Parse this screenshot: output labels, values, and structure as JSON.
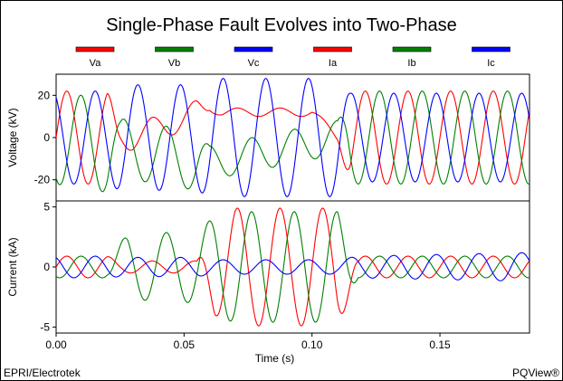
{
  "chart_data": {
    "type": "line",
    "title": "Single-Phase Fault Evolves into Two-Phase",
    "xlabel": "Time (s)",
    "x_ticks": [
      "0.00",
      "0.05",
      "0.10",
      "0.15"
    ],
    "x_tick_values": [
      0,
      0.05,
      0.1,
      0.15
    ],
    "xlim": [
      0,
      0.185
    ],
    "legend_position": "top",
    "legend": [
      {
        "name": "Va",
        "color": "#ff0000"
      },
      {
        "name": "Vb",
        "color": "#008000"
      },
      {
        "name": "Vc",
        "color": "#0000ff"
      },
      {
        "name": "Ia",
        "color": "#ff0000"
      },
      {
        "name": "Ib",
        "color": "#008000"
      },
      {
        "name": "Ic",
        "color": "#0000ff"
      }
    ],
    "panels": [
      {
        "ylabel": "Voltage (kV)",
        "ylim": [
          -30,
          30
        ],
        "y_ticks": [
          "20",
          "0",
          "-20"
        ],
        "y_tick_values": [
          20,
          0,
          -20
        ],
        "frequency_hz": 60,
        "series": [
          {
            "name": "Va",
            "color": "#ff0000",
            "phase_deg": 0,
            "amp_t": [
              0,
              0.02,
              0.025,
              0.055,
              0.06,
              0.062,
              0.07,
              0.11,
              0.115,
              0.185
            ],
            "amp": [
              22,
              22,
              6,
              6,
              2,
              2,
              2,
              2,
              22,
              22
            ],
            "offset_t": [
              0,
              0.03,
              0.06,
              0.065,
              0.1,
              0.11,
              0.185
            ],
            "offset": [
              0,
              0,
              14,
              12,
              12,
              0,
              0
            ]
          },
          {
            "name": "Vb",
            "color": "#008000",
            "phase_deg": -120,
            "amp_t": [
              0,
              0.02,
              0.025,
              0.055,
              0.06,
              0.11,
              0.115,
              0.185
            ],
            "amp": [
              22,
              22,
              14,
              14,
              8,
              8,
              22,
              22
            ],
            "offset_t": [
              0,
              0.03,
              0.06,
              0.11,
              0.185
            ],
            "offset": [
              0,
              -6,
              -12,
              0,
              0
            ]
          },
          {
            "name": "Vc",
            "color": "#0000ff",
            "phase_deg": 120,
            "amp_t": [
              0,
              0.02,
              0.025,
              0.055,
              0.06,
              0.11,
              0.115,
              0.185
            ],
            "amp": [
              22,
              22,
              25,
              25,
              28,
              28,
              21,
              21
            ],
            "offset_t": [
              0,
              0.185
            ],
            "offset": [
              0,
              0
            ]
          }
        ]
      },
      {
        "ylabel": "Current (kA)",
        "ylim": [
          -5.5,
          5.5
        ],
        "y_ticks": [
          "5",
          "0",
          "-5"
        ],
        "y_tick_values": [
          5,
          0,
          -5
        ],
        "frequency_hz": 60,
        "series": [
          {
            "name": "Ia",
            "color": "#ff0000",
            "phase_deg": 0,
            "amp_t": [
              0,
              0.02,
              0.025,
              0.055,
              0.062,
              0.07,
              0.11,
              0.118,
              0.185
            ],
            "amp": [
              0.9,
              0.9,
              0.5,
              0.5,
              4.0,
              4.9,
              4.9,
              0.9,
              0.9
            ],
            "offset_t": [
              0,
              0.185
            ],
            "offset": [
              0,
              0
            ]
          },
          {
            "name": "Ib",
            "color": "#008000",
            "phase_deg": -120,
            "amp_t": [
              0,
              0.02,
              0.028,
              0.055,
              0.062,
              0.07,
              0.11,
              0.118,
              0.185
            ],
            "amp": [
              0.9,
              0.9,
              2.7,
              3.0,
              4.2,
              4.6,
              4.6,
              0.9,
              0.9
            ],
            "offset_t": [
              0,
              0.185
            ],
            "offset": [
              0,
              0
            ]
          },
          {
            "name": "Ic",
            "color": "#0000ff",
            "phase_deg": 120,
            "amp_t": [
              0,
              0.02,
              0.025,
              0.055,
              0.062,
              0.11,
              0.118,
              0.185
            ],
            "amp": [
              0.9,
              0.9,
              0.8,
              0.8,
              0.6,
              0.6,
              0.9,
              1.2
            ],
            "offset_t": [
              0,
              0.185
            ],
            "offset": [
              0,
              0
            ]
          }
        ]
      }
    ]
  },
  "footer": {
    "left": "EPRI/Electrotek",
    "right": "PQView®"
  }
}
